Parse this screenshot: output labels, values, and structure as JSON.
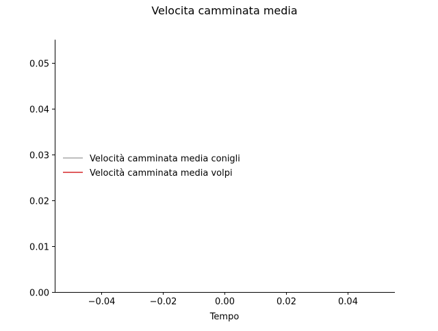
{
  "chart_data": {
    "type": "line",
    "title": "Velocita camminata media",
    "xlabel": "Tempo",
    "ylabel": "",
    "xlim": [
      -0.055,
      0.055
    ],
    "ylim": [
      0.0,
      0.055
    ],
    "x_ticks": [
      -0.04,
      -0.02,
      0.0,
      0.02,
      0.04
    ],
    "x_tick_labels": [
      "−0.04",
      "−0.02",
      "0.00",
      "0.02",
      "0.04"
    ],
    "y_ticks": [
      0.0,
      0.01,
      0.02,
      0.03,
      0.04,
      0.05
    ],
    "y_tick_labels": [
      "0.00",
      "0.01",
      "0.02",
      "0.03",
      "0.04",
      "0.05"
    ],
    "grid": false,
    "legend_position": "center-left",
    "series": [
      {
        "name": "Velocità camminata media conigli",
        "color": "#a8a8a8",
        "x": [],
        "y": []
      },
      {
        "name": "Velocità camminata media volpi",
        "color": "#d62728",
        "x": [],
        "y": []
      }
    ]
  }
}
